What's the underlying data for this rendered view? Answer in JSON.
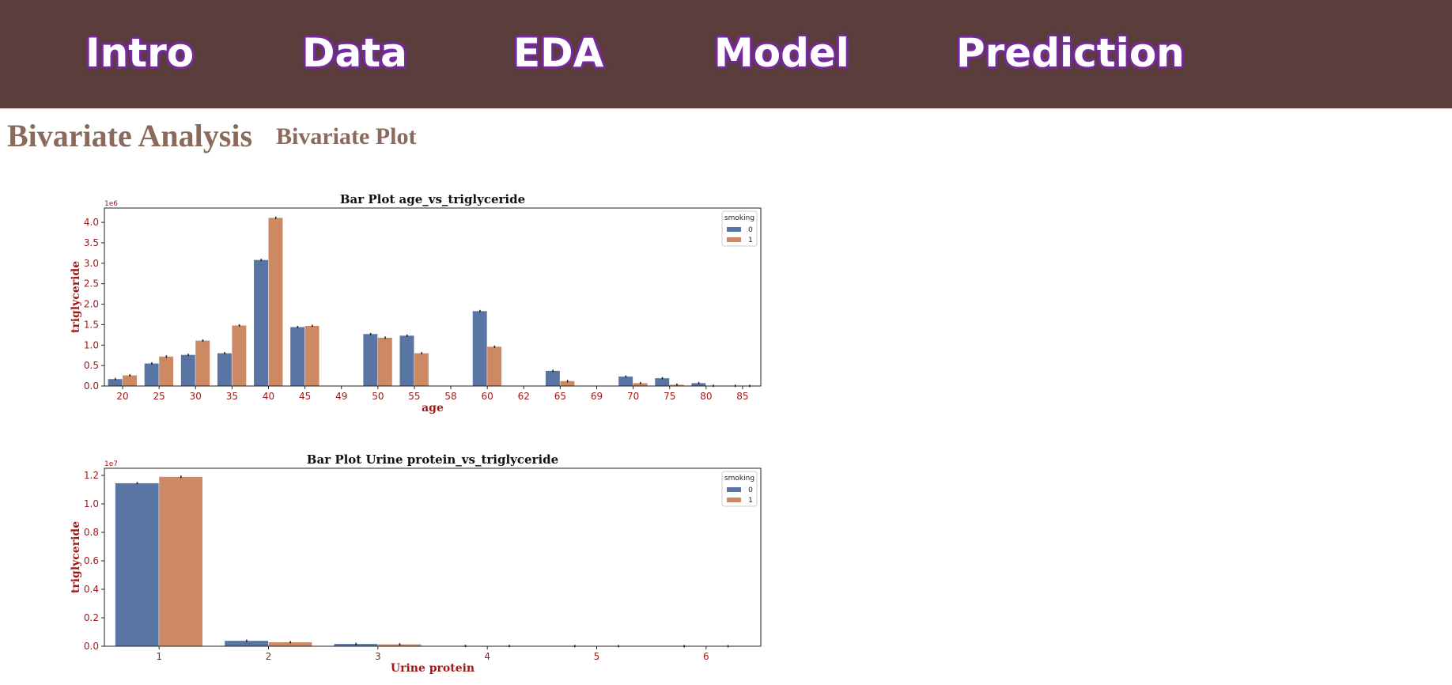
{
  "nav": {
    "items": [
      "Intro",
      "Data",
      "EDA",
      "Model",
      "Prediction"
    ]
  },
  "page": {
    "title": "Bivariate Analysis",
    "subtitle": "Bivariate Plot"
  },
  "colors": {
    "navbar_bg": "#5b3e3b",
    "nav_text_glow": "#7a2aa8",
    "heading": "#8b6a5c",
    "axis_text": "#a01818",
    "series_0": "#5975a4",
    "series_1": "#cc8963"
  },
  "chart_data": [
    {
      "type": "bar",
      "title": "Bar Plot age_vs_triglyceride",
      "xlabel": "age",
      "ylabel": "triglyceride",
      "scale_label": "1e6",
      "scale": 1000000,
      "categories": [
        "20",
        "25",
        "30",
        "35",
        "40",
        "45",
        "49",
        "50",
        "55",
        "58",
        "60",
        "62",
        "65",
        "69",
        "70",
        "75",
        "80",
        "85"
      ],
      "legend_title": "smoking",
      "legend_position": "top-right",
      "series": [
        {
          "name": "0",
          "values": [
            170000,
            550000,
            760000,
            800000,
            3080000,
            1440000,
            0,
            1270000,
            1230000,
            0,
            1830000,
            0,
            370000,
            0,
            230000,
            190000,
            70000,
            5000
          ]
        },
        {
          "name": "1",
          "values": [
            260000,
            720000,
            1110000,
            1480000,
            4110000,
            1470000,
            0,
            1180000,
            800000,
            0,
            960000,
            0,
            120000,
            0,
            70000,
            30000,
            5000,
            2000
          ]
        }
      ],
      "yticks": [
        0,
        500000,
        1000000,
        1500000,
        2000000,
        2500000,
        3000000,
        3500000,
        4000000
      ],
      "ylim": [
        0,
        4350000
      ],
      "grid": false
    },
    {
      "type": "bar",
      "title": "Bar Plot Urine protein_vs_triglyceride",
      "xlabel": "Urine protein",
      "ylabel": "triglyceride",
      "scale_label": "1e7",
      "scale": 10000000,
      "categories": [
        "1",
        "2",
        "3",
        "4",
        "5",
        "6"
      ],
      "legend_title": "smoking",
      "legend_position": "top-right",
      "series": [
        {
          "name": "0",
          "values": [
            11450000,
            380000,
            160000,
            20000,
            5000,
            2000
          ]
        },
        {
          "name": "1",
          "values": [
            11900000,
            280000,
            130000,
            15000,
            3000,
            1000
          ]
        }
      ],
      "yticks": [
        0,
        2000000,
        4000000,
        6000000,
        8000000,
        10000000,
        12000000
      ],
      "ylim": [
        0,
        12500000
      ],
      "grid": false
    }
  ]
}
